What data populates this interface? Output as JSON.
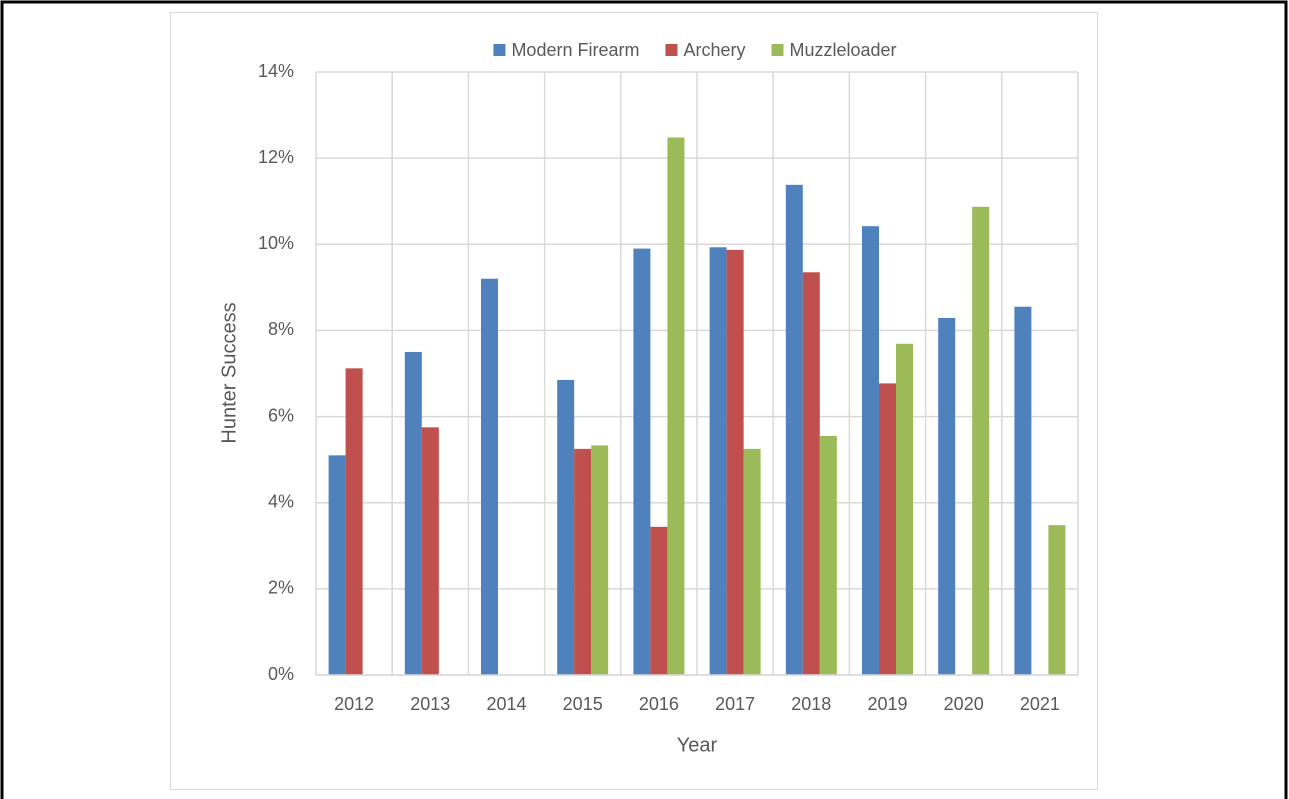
{
  "chart_data": {
    "type": "bar",
    "x_label": "Year",
    "y_label": "Hunter Success",
    "categories": [
      "2012",
      "2013",
      "2014",
      "2015",
      "2016",
      "2017",
      "2018",
      "2019",
      "2020",
      "2021"
    ],
    "series": [
      {
        "name": "Modern Firearm",
        "color": "#4f81bd",
        "values": [
          5.1,
          7.5,
          9.2,
          6.85,
          9.9,
          9.93,
          11.38,
          10.42,
          8.29,
          8.55
        ]
      },
      {
        "name": "Archery",
        "color": "#c0504d",
        "values": [
          7.12,
          5.75,
          null,
          5.25,
          3.44,
          9.87,
          9.35,
          6.77,
          null,
          null
        ]
      },
      {
        "name": "Muzzleloader",
        "color": "#9bbb59",
        "values": [
          null,
          null,
          null,
          5.33,
          12.48,
          5.25,
          5.55,
          7.69,
          10.87,
          3.48
        ]
      }
    ],
    "ylim": [
      0,
      14
    ],
    "yticks": [
      {
        "value": 0,
        "label": "0%"
      },
      {
        "value": 2,
        "label": "2%"
      },
      {
        "value": 4,
        "label": "4%"
      },
      {
        "value": 6,
        "label": "6%"
      },
      {
        "value": 8,
        "label": "8%"
      },
      {
        "value": 10,
        "label": "10%"
      },
      {
        "value": 12,
        "label": "12%"
      },
      {
        "value": 14,
        "label": "14%"
      }
    ],
    "grid": true,
    "legend": "top"
  }
}
